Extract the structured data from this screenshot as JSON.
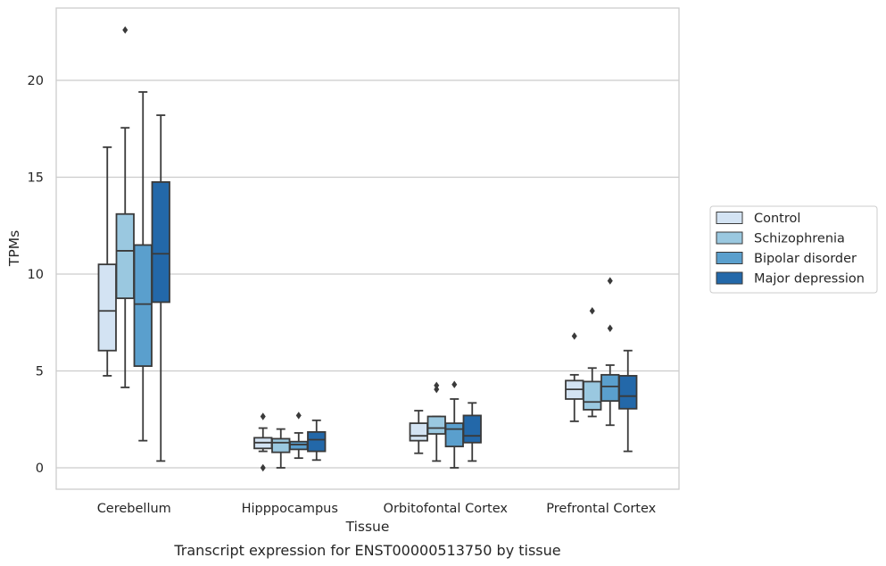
{
  "chart_data": {
    "type": "boxplot",
    "title": "",
    "caption": "Transcript expression for ENST00000513750 by tissue",
    "xlabel": "Tissue",
    "ylabel": "TPMs",
    "ylim": [
      -1.1,
      23.7
    ],
    "yticks": [
      0,
      5,
      10,
      15,
      20
    ],
    "grid": "horizontal",
    "legend_position": "outside-right",
    "categories": [
      "Cerebellum",
      "Hipppocampus",
      "Orbitofontal Cortex",
      "Prefrontal Cortex"
    ],
    "series": [
      {
        "name": "Control",
        "color": "#d3e3f3",
        "boxes": [
          {
            "whislo": 4.75,
            "q1": 6.05,
            "med": 8.1,
            "q3": 10.5,
            "whishi": 16.55,
            "fliers": []
          },
          {
            "whislo": 0.85,
            "q1": 1.0,
            "med": 1.3,
            "q3": 1.55,
            "whishi": 2.05,
            "fliers": [
              0.0,
              2.65
            ]
          },
          {
            "whislo": 0.75,
            "q1": 1.4,
            "med": 1.65,
            "q3": 2.3,
            "whishi": 2.95,
            "fliers": []
          },
          {
            "whislo": 2.4,
            "q1": 3.55,
            "med": 4.05,
            "q3": 4.5,
            "whishi": 4.8,
            "fliers": [
              6.8
            ]
          }
        ]
      },
      {
        "name": "Schizophrenia",
        "color": "#9ac8e0",
        "boxes": [
          {
            "whislo": 4.15,
            "q1": 8.75,
            "med": 11.2,
            "q3": 13.1,
            "whishi": 17.55,
            "fliers": [
              22.6
            ]
          },
          {
            "whislo": 0.0,
            "q1": 0.8,
            "med": 1.3,
            "q3": 1.5,
            "whishi": 2.0,
            "fliers": []
          },
          {
            "whislo": 0.35,
            "q1": 1.75,
            "med": 2.05,
            "q3": 2.65,
            "whishi": 2.65,
            "fliers": [
              4.05,
              4.25
            ]
          },
          {
            "whislo": 2.65,
            "q1": 3.0,
            "med": 3.4,
            "q3": 4.45,
            "whishi": 5.15,
            "fliers": [
              8.1
            ]
          }
        ]
      },
      {
        "name": "Bipolar disorder",
        "color": "#5a9fcd",
        "boxes": [
          {
            "whislo": 1.4,
            "q1": 5.25,
            "med": 8.45,
            "q3": 11.5,
            "whishi": 19.4,
            "fliers": []
          },
          {
            "whislo": 0.5,
            "q1": 0.95,
            "med": 1.2,
            "q3": 1.35,
            "whishi": 1.8,
            "fliers": [
              2.7
            ]
          },
          {
            "whislo": 0.0,
            "q1": 1.1,
            "med": 2.0,
            "q3": 2.3,
            "whishi": 3.55,
            "fliers": [
              4.3
            ]
          },
          {
            "whislo": 2.2,
            "q1": 3.45,
            "med": 4.2,
            "q3": 4.8,
            "whishi": 5.3,
            "fliers": [
              7.2,
              9.65
            ]
          }
        ]
      },
      {
        "name": "Major depression",
        "color": "#2368a9",
        "boxes": [
          {
            "whislo": 0.35,
            "q1": 8.55,
            "med": 11.05,
            "q3": 14.75,
            "whishi": 18.2,
            "fliers": []
          },
          {
            "whislo": 0.4,
            "q1": 0.85,
            "med": 1.45,
            "q3": 1.85,
            "whishi": 2.45,
            "fliers": []
          },
          {
            "whislo": 0.35,
            "q1": 1.3,
            "med": 1.65,
            "q3": 2.7,
            "whishi": 3.35,
            "fliers": []
          },
          {
            "whislo": 0.85,
            "q1": 3.05,
            "med": 3.7,
            "q3": 4.75,
            "whishi": 6.05,
            "fliers": []
          }
        ]
      }
    ]
  }
}
